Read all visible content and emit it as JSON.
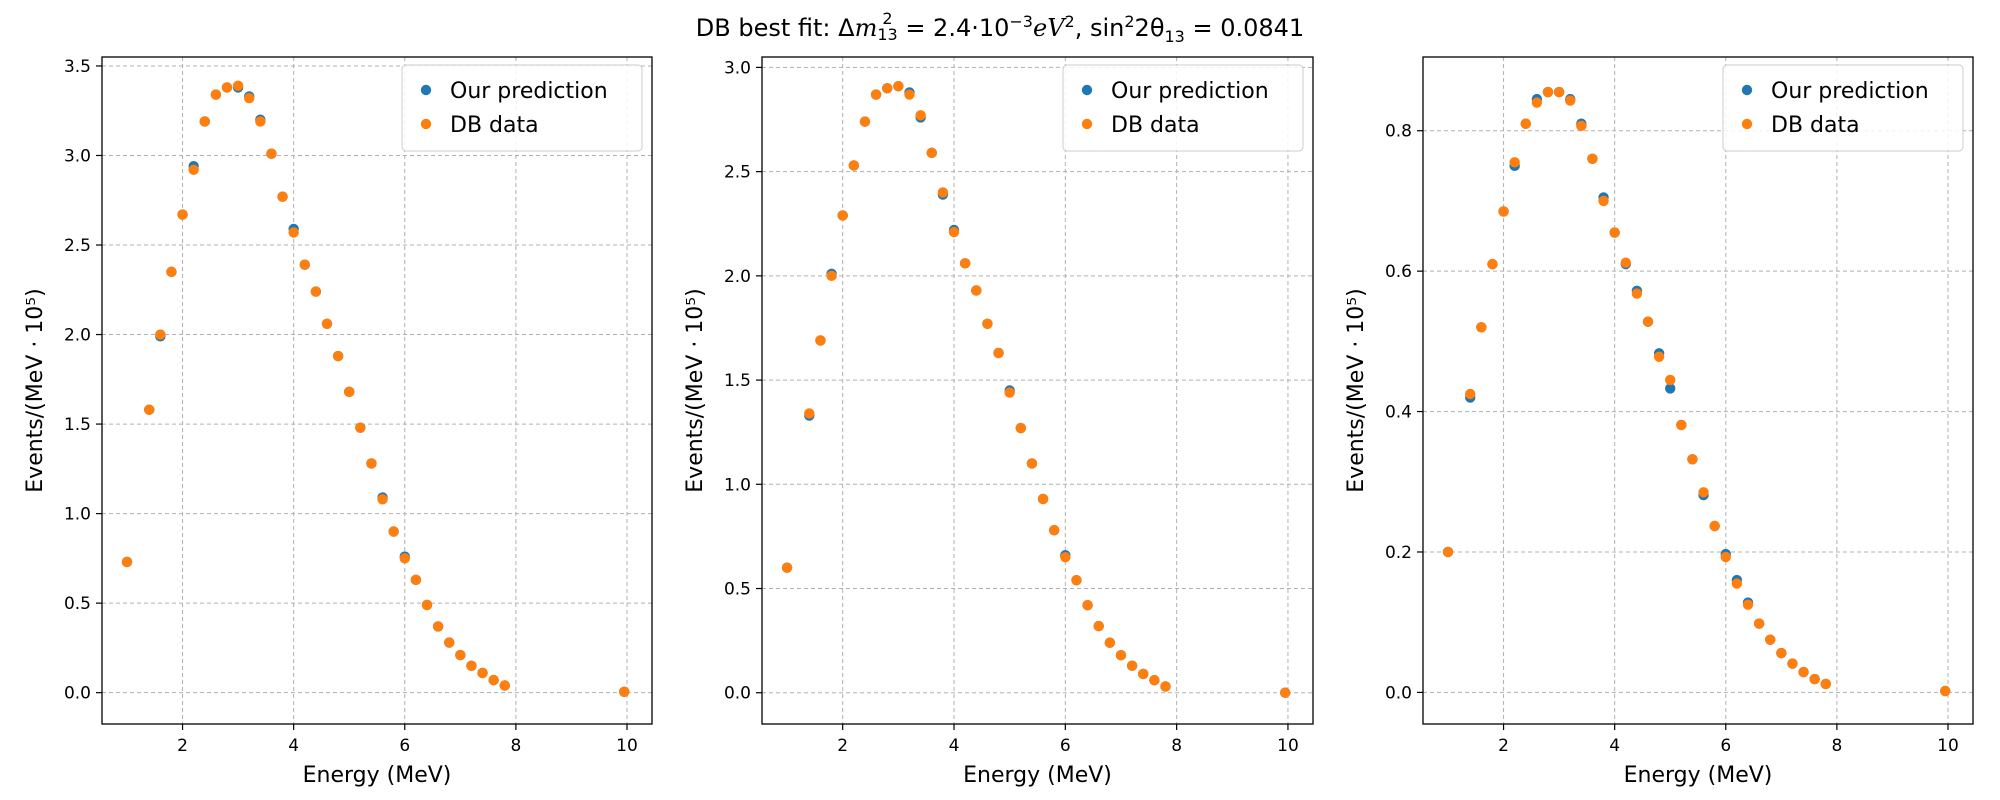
{
  "figure": {
    "suptitle_text": "DB best fit: Δm²₁₃ = 2.4·10⁻³eV², sin²2θ₁₃ = 0.0841",
    "title_parts": {
      "prefix": "DB best fit: ",
      "delta": "Δ",
      "m": "m",
      "m_sup": "2",
      "m_sub": "13",
      "eq1": " = 2.4·10",
      "exp": "−3",
      "ev": "eV",
      "ev_sup": "2",
      "mid": ", sin",
      "sin_sup": "2",
      "two_theta": "2θ",
      "theta_sub": "13",
      "eq2": " = 0.0841"
    },
    "colors": {
      "prediction": "#1f77b4",
      "data": "#ff7f0e",
      "grid": "#b0b0b0"
    }
  },
  "chart_data": [
    {
      "type": "scatter",
      "title": "",
      "xlabel": "Energy (MeV)",
      "ylabel": "Events/(MeV · 10⁵)",
      "xlim": [
        0.55,
        10.45
      ],
      "ylim": [
        -0.175,
        3.55
      ],
      "xticks": [
        2,
        4,
        6,
        8,
        10
      ],
      "yticks": [
        0.0,
        0.5,
        1.0,
        1.5,
        2.0,
        2.5,
        3.0,
        3.5
      ],
      "grid": true,
      "legend_position": "top-right",
      "x": [
        1.0,
        1.4,
        1.6,
        1.8,
        2.0,
        2.2,
        2.4,
        2.6,
        2.8,
        3.0,
        3.2,
        3.4,
        3.6,
        3.8,
        4.0,
        4.2,
        4.4,
        4.6,
        4.8,
        5.0,
        5.2,
        5.4,
        5.6,
        5.8,
        6.0,
        6.2,
        6.4,
        6.6,
        6.8,
        7.0,
        7.2,
        7.4,
        7.6,
        7.8,
        9.95
      ],
      "series": [
        {
          "name": "Our prediction",
          "values": [
            0.73,
            1.58,
            1.99,
            2.35,
            2.67,
            2.94,
            3.19,
            3.34,
            3.38,
            3.38,
            3.33,
            3.2,
            3.01,
            2.77,
            2.59,
            2.39,
            2.24,
            2.06,
            1.88,
            1.68,
            1.48,
            1.28,
            1.09,
            0.9,
            0.76,
            0.63,
            0.49,
            0.37,
            0.28,
            0.21,
            0.15,
            0.11,
            0.07,
            0.04,
            0.005
          ]
        },
        {
          "name": "DB data",
          "values": [
            0.73,
            1.58,
            2.0,
            2.35,
            2.67,
            2.92,
            3.19,
            3.34,
            3.38,
            3.39,
            3.32,
            3.19,
            3.01,
            2.77,
            2.57,
            2.39,
            2.24,
            2.06,
            1.88,
            1.68,
            1.48,
            1.28,
            1.08,
            0.9,
            0.75,
            0.63,
            0.49,
            0.37,
            0.28,
            0.21,
            0.15,
            0.11,
            0.07,
            0.04,
            0.005
          ]
        }
      ]
    },
    {
      "type": "scatter",
      "title": "",
      "xlabel": "Energy (MeV)",
      "ylabel": "Events/(MeV · 10⁵)",
      "xlim": [
        0.55,
        10.45
      ],
      "ylim": [
        -0.15,
        3.05
      ],
      "xticks": [
        2,
        4,
        6,
        8,
        10
      ],
      "yticks": [
        0.0,
        0.5,
        1.0,
        1.5,
        2.0,
        2.5,
        3.0
      ],
      "grid": true,
      "legend_position": "top-right",
      "x": [
        1.0,
        1.4,
        1.6,
        1.8,
        2.0,
        2.2,
        2.4,
        2.6,
        2.8,
        3.0,
        3.2,
        3.4,
        3.6,
        3.8,
        4.0,
        4.2,
        4.4,
        4.6,
        4.8,
        5.0,
        5.2,
        5.4,
        5.6,
        5.8,
        6.0,
        6.2,
        6.4,
        6.6,
        6.8,
        7.0,
        7.2,
        7.4,
        7.6,
        7.8,
        9.95
      ],
      "series": [
        {
          "name": "Our prediction",
          "values": [
            0.6,
            1.33,
            1.69,
            2.01,
            2.29,
            2.53,
            2.74,
            2.87,
            2.9,
            2.91,
            2.88,
            2.76,
            2.59,
            2.39,
            2.22,
            2.06,
            1.93,
            1.77,
            1.63,
            1.45,
            1.27,
            1.1,
            0.93,
            0.78,
            0.66,
            0.54,
            0.42,
            0.32,
            0.24,
            0.18,
            0.13,
            0.09,
            0.06,
            0.03,
            0.0
          ]
        },
        {
          "name": "DB data",
          "values": [
            0.6,
            1.34,
            1.69,
            2.0,
            2.29,
            2.53,
            2.74,
            2.87,
            2.9,
            2.91,
            2.87,
            2.77,
            2.59,
            2.4,
            2.21,
            2.06,
            1.93,
            1.77,
            1.63,
            1.44,
            1.27,
            1.1,
            0.93,
            0.78,
            0.65,
            0.54,
            0.42,
            0.32,
            0.24,
            0.18,
            0.13,
            0.09,
            0.06,
            0.03,
            0.0
          ]
        }
      ]
    },
    {
      "type": "scatter",
      "title": "",
      "xlabel": "Energy (MeV)",
      "ylabel": "Events/(MeV · 10⁵)",
      "xlim": [
        0.55,
        10.45
      ],
      "ylim": [
        -0.045,
        0.905
      ],
      "xticks": [
        2,
        4,
        6,
        8,
        10
      ],
      "yticks": [
        0.0,
        0.2,
        0.4,
        0.6,
        0.8
      ],
      "grid": true,
      "legend_position": "top-right",
      "x": [
        1.0,
        1.4,
        1.6,
        1.8,
        2.0,
        2.2,
        2.4,
        2.6,
        2.8,
        3.0,
        3.2,
        3.4,
        3.6,
        3.8,
        4.0,
        4.2,
        4.4,
        4.6,
        4.8,
        5.0,
        5.2,
        5.4,
        5.6,
        5.8,
        6.0,
        6.2,
        6.4,
        6.6,
        6.8,
        7.0,
        7.2,
        7.4,
        7.6,
        7.8,
        9.95
      ],
      "series": [
        {
          "name": "Our prediction",
          "values": [
            0.2,
            0.42,
            0.52,
            0.61,
            0.685,
            0.75,
            0.81,
            0.845,
            0.855,
            0.855,
            0.845,
            0.81,
            0.76,
            0.705,
            0.655,
            0.61,
            0.572,
            0.528,
            0.483,
            0.433,
            0.381,
            0.332,
            0.281,
            0.237,
            0.197,
            0.16,
            0.128,
            0.098,
            0.075,
            0.056,
            0.041,
            0.029,
            0.019,
            0.012,
            0.002
          ]
        },
        {
          "name": "DB data",
          "values": [
            0.2,
            0.425,
            0.52,
            0.61,
            0.685,
            0.755,
            0.81,
            0.84,
            0.855,
            0.855,
            0.843,
            0.807,
            0.76,
            0.7,
            0.655,
            0.612,
            0.568,
            0.528,
            0.478,
            0.445,
            0.381,
            0.332,
            0.285,
            0.237,
            0.193,
            0.155,
            0.125,
            0.098,
            0.075,
            0.056,
            0.041,
            0.029,
            0.019,
            0.012,
            0.002
          ]
        }
      ]
    }
  ]
}
